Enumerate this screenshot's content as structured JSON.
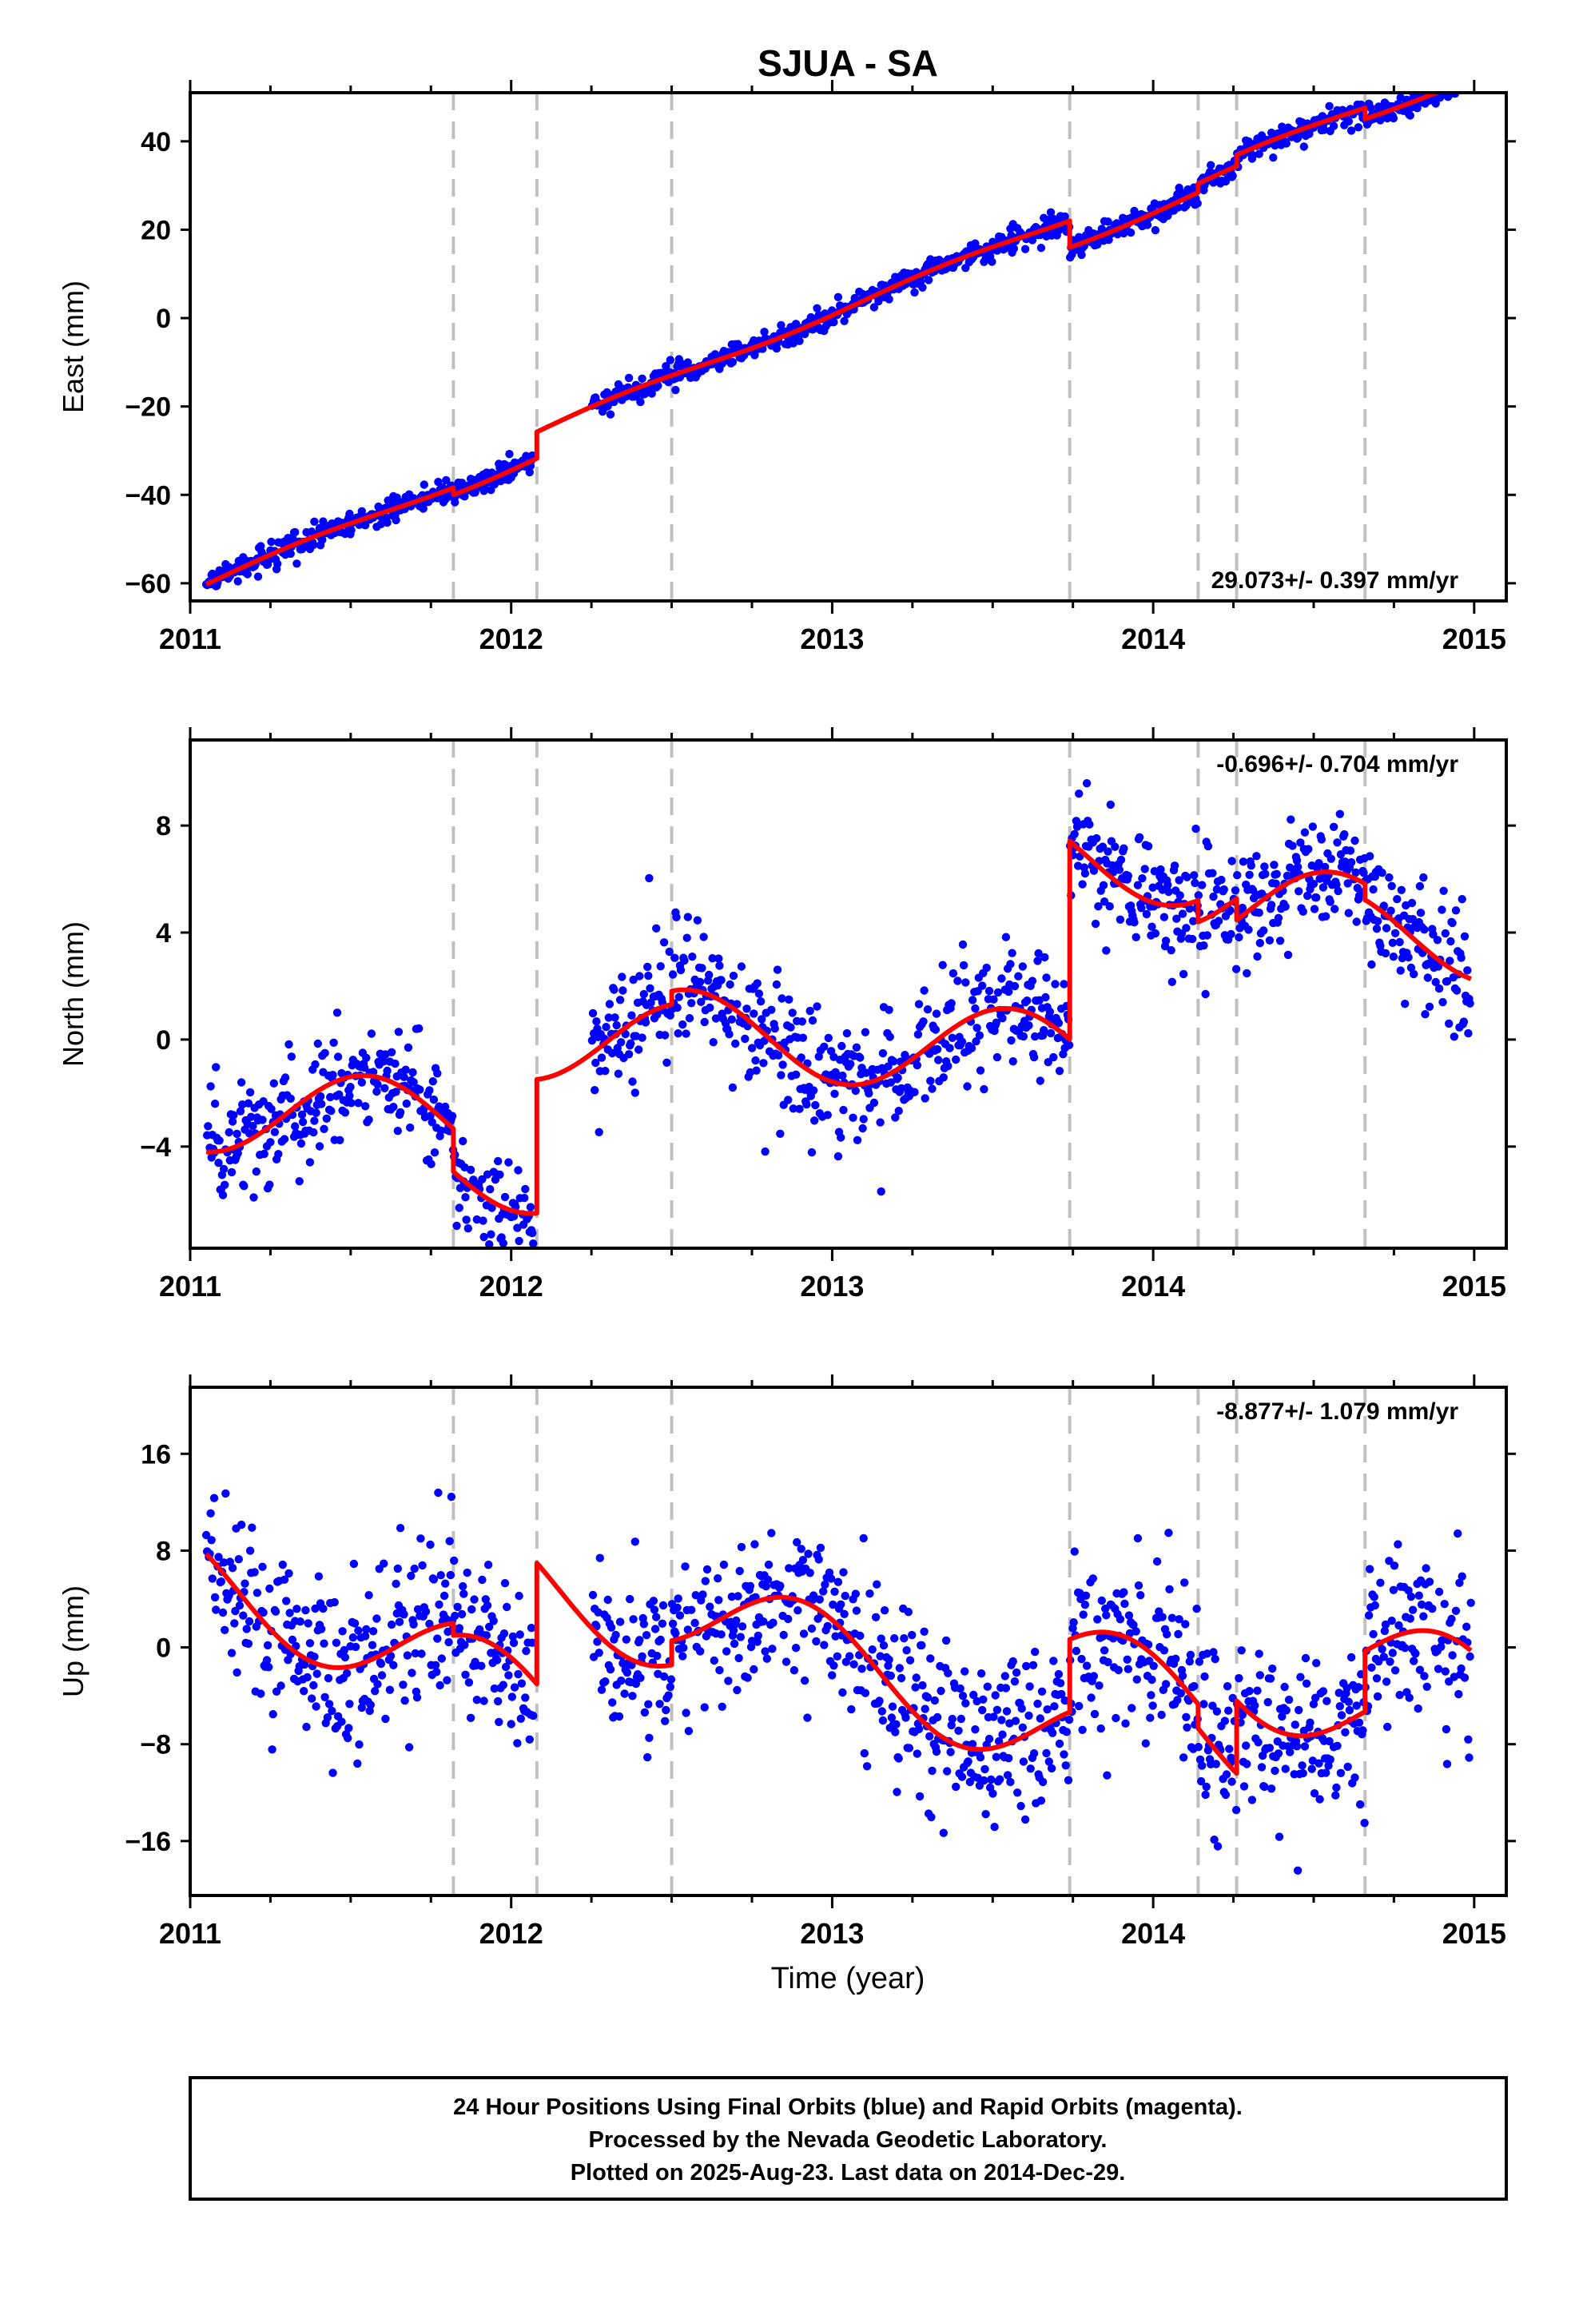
{
  "title": "SJUA - SA",
  "xlabel": "Time (year)",
  "colors": {
    "final_orbits": "#0000ff",
    "model": "#ff0000",
    "breaks": "#c0c0c0",
    "frame": "#000000"
  },
  "x_ticks": [
    2011,
    2012,
    2013,
    2014,
    2015
  ],
  "x_range": [
    2011.0,
    2015.1
  ],
  "offset_epochs": [
    2011.82,
    2012.08,
    2012.5,
    2013.74,
    2014.14,
    2014.26,
    2014.66
  ],
  "footer": {
    "line1": "24 Hour Positions Using Final Orbits (blue) and Rapid Orbits (magenta).",
    "line2": "Processed by the Nevada Geodetic Laboratory.",
    "line3": "Plotted on 2025-Aug-23. Last data on 2014-Dec-29."
  },
  "chart_data": [
    {
      "type": "scatter",
      "component": "east",
      "ylabel": "East (mm)",
      "rate_label": "29.073+/- 0.397 mm/yr",
      "y_ticks": [
        -60,
        -40,
        -20,
        0,
        20,
        40
      ],
      "ylim": [
        -64,
        51
      ],
      "grid": false,
      "series": [
        {
          "name": "Final Orbits",
          "color": "#0000ff",
          "model": {
            "rate": 29.073,
            "base": -60,
            "start": 2011.05,
            "annual": 0.8,
            "phase": 0.1,
            "noise": 1.3,
            "jumps": [
              [
                2011.82,
                -1.6
              ],
              [
                2012.08,
                6.0
              ],
              [
                2013.74,
                -6.0
              ],
              [
                2014.14,
                2.0
              ],
              [
                2014.26,
                2.5
              ],
              [
                2014.66,
                -2.5
              ]
            ]
          }
        },
        {
          "name": "Model Fit",
          "color": "#ff0000"
        }
      ]
    },
    {
      "type": "scatter",
      "component": "north",
      "ylabel": "North (mm)",
      "rate_label": "-0.696+/- 0.704 mm/yr",
      "y_ticks": [
        -4,
        0,
        4,
        8
      ],
      "ylim": [
        -7.8,
        11.2
      ],
      "grid": false,
      "series": [
        {
          "name": "Final Orbits",
          "color": "#0000ff",
          "model": {
            "rate": -0.696,
            "base": -2.6,
            "start": 2011.05,
            "annual": 1.6,
            "phase": 0.3,
            "noise": 1.1,
            "jumps": [
              [
                2011.82,
                -1.6
              ],
              [
                2012.08,
                5.0
              ],
              [
                2012.5,
                0.5
              ],
              [
                2013.74,
                7.4
              ],
              [
                2014.14,
                -0.8
              ],
              [
                2014.26,
                -0.8
              ],
              [
                2014.66,
                -0.6
              ]
            ]
          }
        },
        {
          "name": "Model Fit",
          "color": "#ff0000"
        }
      ]
    },
    {
      "type": "scatter",
      "component": "up",
      "ylabel": "Up (mm)",
      "rate_label": "-8.877+/- 1.079 mm/yr",
      "y_ticks": [
        -16,
        -8,
        0,
        8,
        16
      ],
      "ylim": [
        -20.5,
        21.5
      ],
      "grid": false,
      "series": [
        {
          "name": "Final Orbits",
          "color": "#0000ff",
          "model": {
            "rate": -8.877,
            "base": 5.5,
            "start": 2011.05,
            "annual": 3.8,
            "phase": 0.65,
            "noise": 3.6,
            "jumps": [
              [
                2011.82,
                -1.0
              ],
              [
                2012.08,
                10.0
              ],
              [
                2012.5,
                2.0
              ],
              [
                2013.74,
                6.0
              ],
              [
                2014.14,
                -2.0
              ],
              [
                2014.26,
                6.0
              ],
              [
                2014.66,
                5.0
              ]
            ]
          }
        },
        {
          "name": "Model Fit",
          "color": "#ff0000"
        }
      ]
    }
  ]
}
